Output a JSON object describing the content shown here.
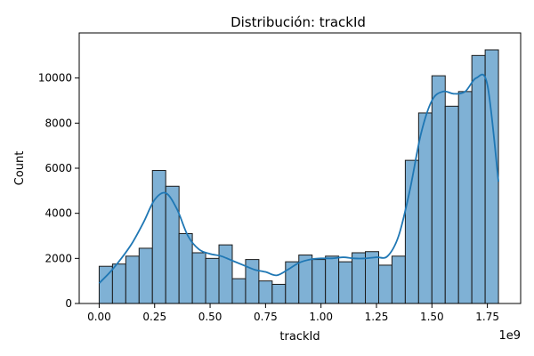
{
  "chart_data": {
    "type": "bar",
    "title": "Distribución: trackId",
    "xlabel": "trackId",
    "ylabel": "Count",
    "x_offset_label": "1e9",
    "xlim": [
      -0.09,
      1.9
    ],
    "ylim": [
      0,
      12000
    ],
    "x_ticks": [
      0.0,
      0.25,
      0.5,
      0.75,
      1.0,
      1.25,
      1.5,
      1.75
    ],
    "x_tick_labels": [
      "0.00",
      "0.25",
      "0.50",
      "0.75",
      "1.00",
      "1.25",
      "1.50",
      "1.75"
    ],
    "y_ticks": [
      0,
      2000,
      4000,
      6000,
      8000,
      10000
    ],
    "y_tick_labels": [
      "0",
      "2000",
      "4000",
      "6000",
      "8000",
      "10000"
    ],
    "bin_edges": [
      0.0,
      0.06,
      0.12,
      0.18,
      0.24,
      0.3,
      0.36,
      0.42,
      0.48,
      0.54,
      0.6,
      0.66,
      0.72,
      0.78,
      0.84,
      0.9,
      0.96,
      1.02,
      1.08,
      1.14,
      1.2,
      1.26,
      1.32,
      1.38,
      1.44,
      1.5,
      1.56,
      1.62,
      1.68,
      1.74,
      1.8
    ],
    "values": [
      1650,
      1750,
      2100,
      2450,
      5900,
      5200,
      3100,
      2250,
      2000,
      2600,
      1100,
      1950,
      1000,
      850,
      1850,
      2150,
      1950,
      2100,
      1850,
      2250,
      2300,
      1700,
      2100,
      6350,
      8450,
      10100,
      8750,
      9400,
      11000,
      11250
    ],
    "bar_color": "#7fb1d5",
    "edge_color": "#1a1a1a",
    "kde": {
      "x": [
        0.0,
        0.05,
        0.1,
        0.15,
        0.2,
        0.25,
        0.3,
        0.35,
        0.4,
        0.45,
        0.5,
        0.55,
        0.6,
        0.65,
        0.7,
        0.75,
        0.8,
        0.85,
        0.9,
        0.95,
        1.0,
        1.05,
        1.1,
        1.15,
        1.2,
        1.25,
        1.3,
        1.35,
        1.4,
        1.45,
        1.5,
        1.55,
        1.6,
        1.65,
        1.7,
        1.75,
        1.8
      ],
      "y": [
        900,
        1400,
        2000,
        2700,
        3600,
        4600,
        4900,
        4200,
        3000,
        2400,
        2200,
        2100,
        1900,
        1700,
        1500,
        1400,
        1250,
        1500,
        1800,
        1950,
        2000,
        2000,
        2050,
        2000,
        2000,
        2050,
        2100,
        3000,
        5000,
        7500,
        9000,
        9400,
        9300,
        9400,
        10000,
        9700,
        5400
      ],
      "color": "#1f77b4"
    }
  }
}
